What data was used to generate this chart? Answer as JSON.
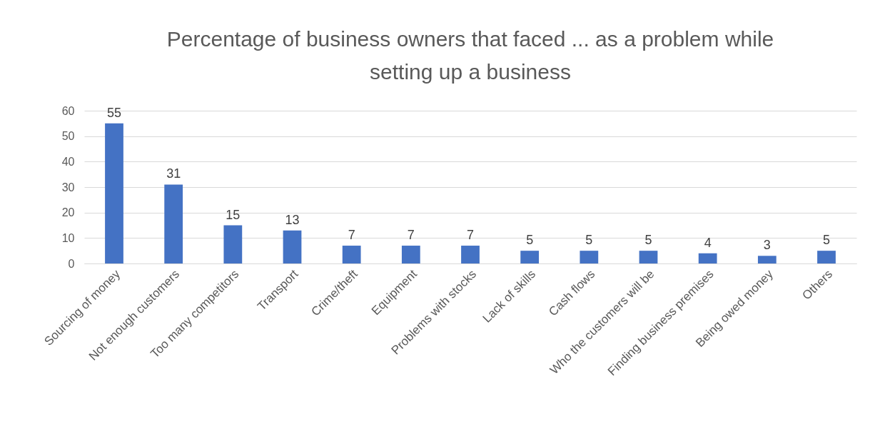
{
  "chart_data": {
    "type": "bar",
    "title": "Percentage of business owners that faced ... as a problem while setting up a business",
    "categories": [
      "Sourcing of money",
      "Not enough customers",
      "Too many competitors",
      "Transport",
      "Crime/theft",
      "Equipment",
      "Problems with stocks",
      "Lack of skills",
      "Cash flows",
      "Who the customers will be",
      "Finding business premises",
      "Being owed money",
      "Others"
    ],
    "values": [
      55,
      31,
      15,
      13,
      7,
      7,
      7,
      5,
      5,
      5,
      4,
      3,
      5
    ],
    "color": "#4472c4",
    "ylim": [
      0,
      60
    ],
    "yticks": [
      0,
      10,
      20,
      30,
      40,
      50,
      60
    ],
    "grid": "y",
    "data_labels": true
  }
}
